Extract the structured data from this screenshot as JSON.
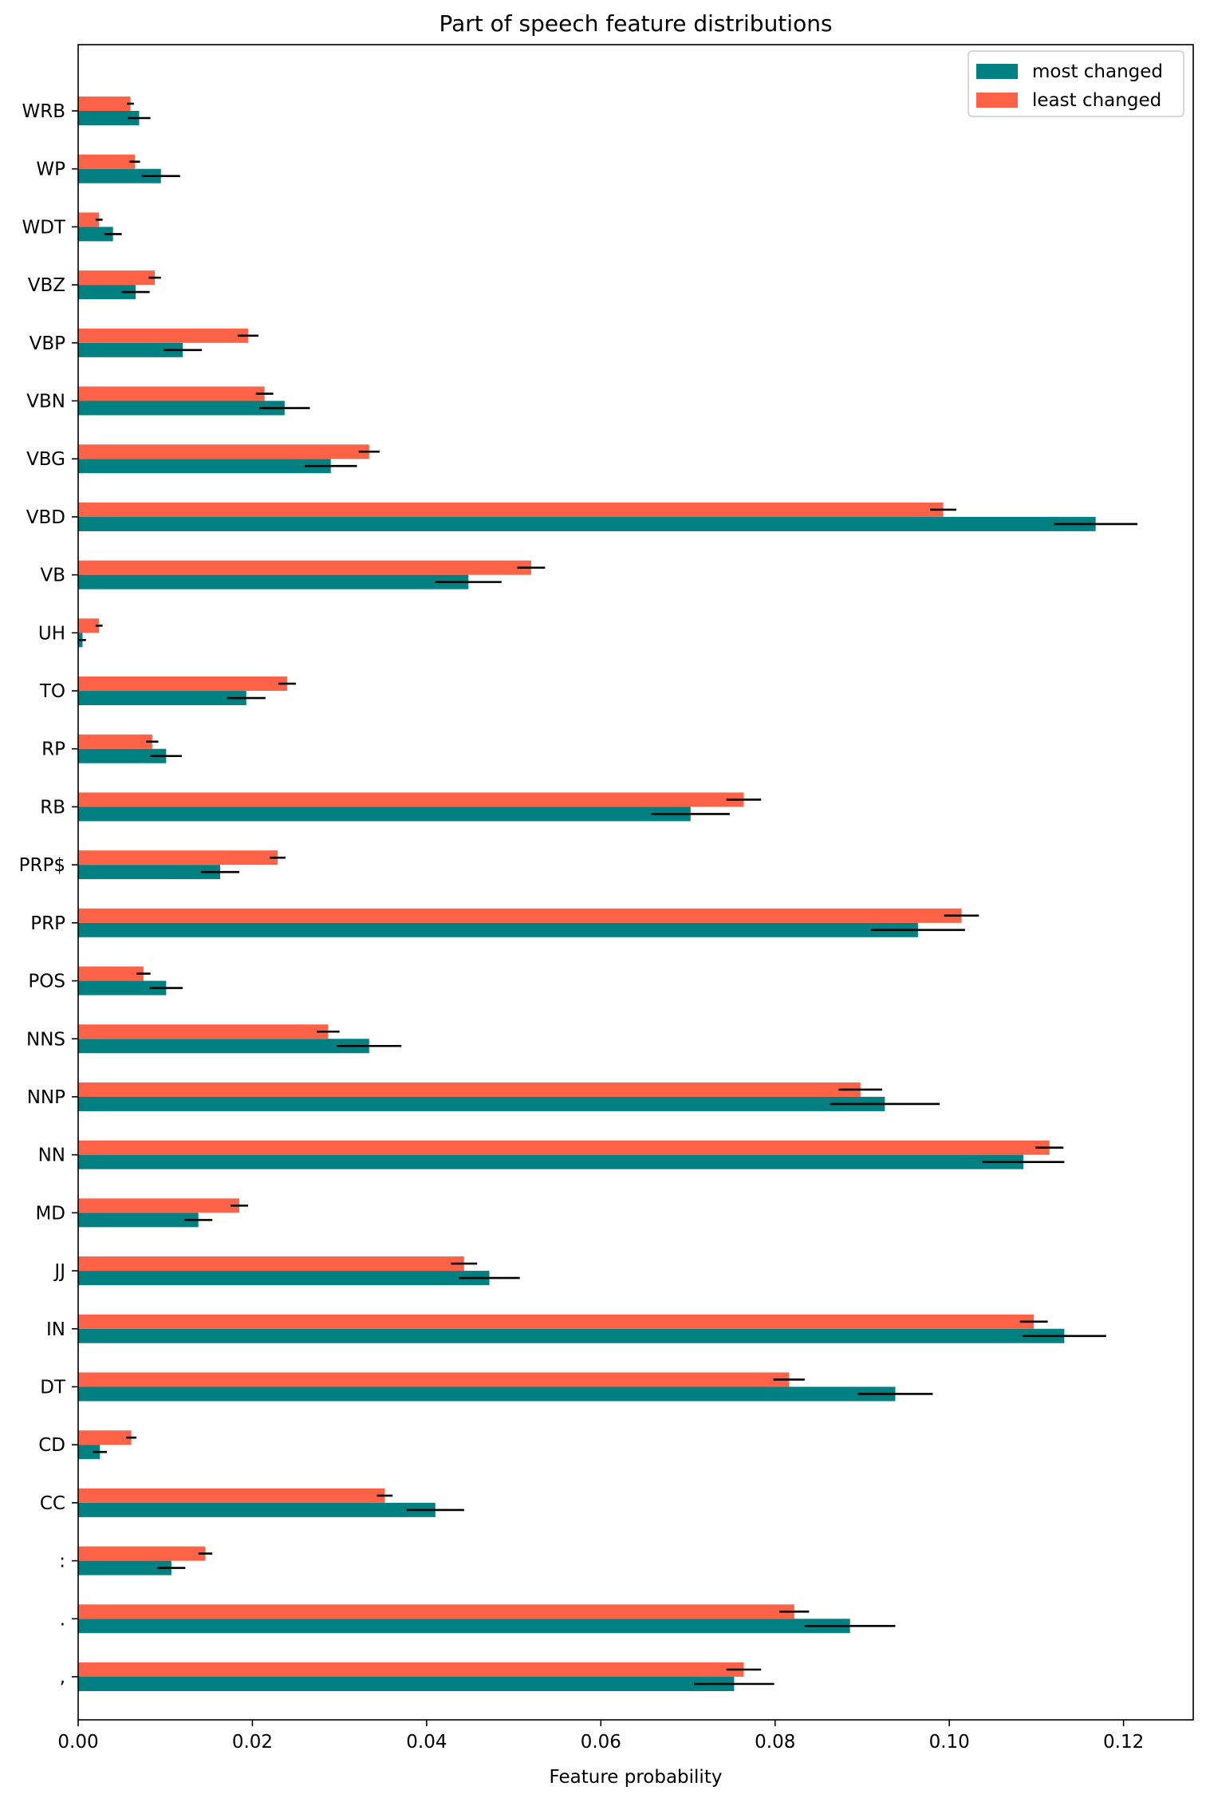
{
  "chart_data": {
    "type": "bar",
    "orientation": "horizontal",
    "title": "Part of speech feature distributions",
    "xlabel": "Feature probability",
    "ylabel": "",
    "xlim": [
      0.0,
      0.128
    ],
    "xticks": [
      "0.00",
      "0.02",
      "0.04",
      "0.06",
      "0.08",
      "0.10",
      "0.12"
    ],
    "xtick_values": [
      0.0,
      0.02,
      0.04,
      0.06,
      0.08,
      0.1,
      0.12
    ],
    "legend_position": "top-right",
    "grid": false,
    "categories": [
      ",",
      ".",
      ":",
      "CC",
      "CD",
      "DT",
      "IN",
      "JJ",
      "MD",
      "NN",
      "NNP",
      "NNS",
      "POS",
      "PRP",
      "PRP$",
      "RB",
      "RP",
      "TO",
      "UH",
      "VB",
      "VBD",
      "VBG",
      "VBN",
      "VBP",
      "VBZ",
      "WDT",
      "WP",
      "WRB"
    ],
    "series": [
      {
        "name": "most changed",
        "color": "#008080",
        "values": [
          0.0753,
          0.0886,
          0.0107,
          0.041,
          0.0025,
          0.0938,
          0.1132,
          0.0472,
          0.0138,
          0.1085,
          0.0926,
          0.0334,
          0.0101,
          0.0964,
          0.0163,
          0.0703,
          0.0101,
          0.0193,
          0.0005,
          0.0448,
          0.1168,
          0.029,
          0.0237,
          0.012,
          0.0066,
          0.004,
          0.0095,
          0.007
        ],
        "errors": [
          0.0046,
          0.0052,
          0.0016,
          0.0033,
          0.0008,
          0.0043,
          0.0048,
          0.0035,
          0.0016,
          0.0047,
          0.0063,
          0.0037,
          0.0019,
          0.0054,
          0.0022,
          0.0045,
          0.0018,
          0.0022,
          0.0004,
          0.0038,
          0.0048,
          0.003,
          0.0029,
          0.0022,
          0.0016,
          0.001,
          0.0022,
          0.0013
        ]
      },
      {
        "name": "least changed",
        "color": "#ff6347",
        "values": [
          0.0764,
          0.0822,
          0.0146,
          0.0352,
          0.0061,
          0.0816,
          0.1097,
          0.0443,
          0.0185,
          0.1115,
          0.0898,
          0.0287,
          0.0075,
          0.1014,
          0.0229,
          0.0764,
          0.0085,
          0.024,
          0.0024,
          0.052,
          0.0993,
          0.0334,
          0.0214,
          0.0195,
          0.0088,
          0.0024,
          0.0065,
          0.006
        ],
        "errors": [
          0.002,
          0.0017,
          0.0008,
          0.0009,
          0.0006,
          0.0018,
          0.0016,
          0.0015,
          0.001,
          0.0016,
          0.0025,
          0.0013,
          0.0008,
          0.002,
          0.0009,
          0.002,
          0.0007,
          0.001,
          0.0004,
          0.0016,
          0.0015,
          0.0012,
          0.001,
          0.0012,
          0.0007,
          0.0004,
          0.0006,
          0.0004
        ]
      }
    ]
  }
}
